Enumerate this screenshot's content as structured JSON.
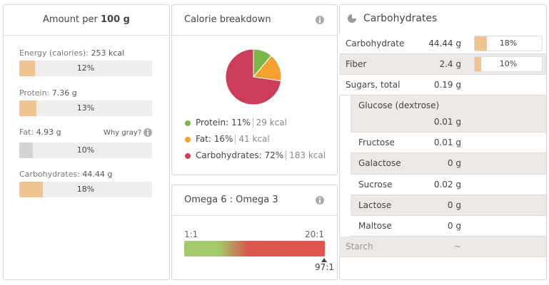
{
  "nutrients_panel": {
    "header_prefix": "Amount per",
    "header_amount": "100 g",
    "why_gray": "Why gray?",
    "rows": [
      {
        "label": "Energy (calories):",
        "amount": "253 kcal",
        "percent": {
          "value": 12,
          "label": "12%"
        },
        "gray": false
      },
      {
        "label": "Protein:",
        "amount": "7.36 g",
        "percent": {
          "value": 13,
          "label": "13%"
        },
        "gray": false
      },
      {
        "label": "Fat:",
        "amount": "4.93 g",
        "percent": {
          "value": 10,
          "label": "10%"
        },
        "gray": true
      },
      {
        "label": "Carbohydrates:",
        "amount": "44.44 g",
        "percent": {
          "value": 18,
          "label": "18%"
        },
        "gray": false
      }
    ]
  },
  "calorie_breakdown": {
    "title": "Calorie breakdown",
    "items": [
      {
        "name": "Protein:",
        "percent": {
          "value": 11,
          "label": "11%"
        },
        "kcal": "29 kcal",
        "color": "#7ab648"
      },
      {
        "name": "Fat:",
        "percent": {
          "value": 16,
          "label": "16%"
        },
        "kcal": "41 kcal",
        "color": "#f5a030"
      },
      {
        "name": "Carbohydrates:",
        "percent": {
          "value": 72,
          "label": "72%"
        },
        "kcal": "183 kcal",
        "color": "#cc3d5a"
      }
    ]
  },
  "omega": {
    "title": "Omega 6 : Omega 3",
    "scale_start": "1:1",
    "scale_end": "20:1",
    "value": "97:1"
  },
  "carbohydrates": {
    "title": "Carbohydrates",
    "rows": [
      {
        "name": "Carbohydrate",
        "amount": "44.44 g",
        "percent": {
          "value": 18,
          "label": "18%"
        }
      },
      {
        "name": "Fiber",
        "amount": "2.4 g",
        "percent": {
          "value": 10,
          "label": "10%"
        }
      },
      {
        "name": "Sugars, total",
        "amount": "0.19 g"
      },
      {
        "name": "Glucose (dextrose)",
        "amount": "0.01 g"
      },
      {
        "name": "Fructose",
        "amount": "0.01 g"
      },
      {
        "name": "Galactose",
        "amount": "0 g"
      },
      {
        "name": "Sucrose",
        "amount": "0.02 g"
      },
      {
        "name": "Lactose",
        "amount": "0 g"
      },
      {
        "name": "Maltose",
        "amount": "0 g"
      },
      {
        "name": "Starch",
        "amount": "~"
      }
    ]
  }
}
